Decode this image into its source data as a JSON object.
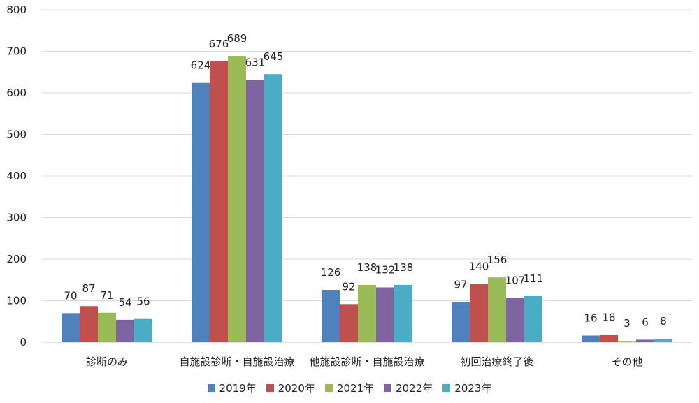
{
  "chart_data": {
    "type": "bar",
    "title": "",
    "xlabel": "",
    "ylabel": "",
    "ylim": [
      0,
      800
    ],
    "yticks": [
      0,
      100,
      200,
      300,
      400,
      500,
      600,
      700,
      800
    ],
    "grid": true,
    "legend_position": "bottom",
    "categories": [
      "診断のみ",
      "自施設診断・自施設治療",
      "他施設診断・自施設治療",
      "初回治療終了後",
      "その他"
    ],
    "series": [
      {
        "name": "2019年",
        "color": "#4f81bd",
        "values": [
          70,
          624,
          126,
          97,
          16
        ]
      },
      {
        "name": "2020年",
        "color": "#c0504d",
        "values": [
          87,
          676,
          92,
          140,
          18
        ]
      },
      {
        "name": "2021年",
        "color": "#9bbb59",
        "values": [
          71,
          689,
          138,
          156,
          3
        ]
      },
      {
        "name": "2022年",
        "color": "#8064a2",
        "values": [
          54,
          631,
          132,
          107,
          6
        ]
      },
      {
        "name": "2023年",
        "color": "#4bacc6",
        "values": [
          56,
          645,
          138,
          111,
          8
        ]
      }
    ]
  }
}
